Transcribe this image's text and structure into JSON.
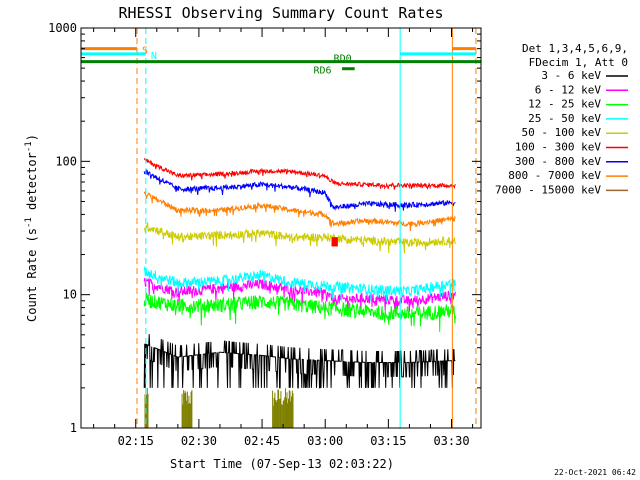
{
  "chart_data": {
    "type": "line",
    "title": "RHESSI Observing Summary Count Rates",
    "xlabel": "Start Time (07-Sep-13 02:03:22)",
    "ylabel_main": "Count Rate (s",
    "ylabel_sup1": "-1",
    "ylabel_mid": " detector",
    "ylabel_sup2": "-1",
    "ylabel_end": ")",
    "yscale": "log",
    "ylim": [
      1,
      1000
    ],
    "xlim_minutes": [
      2.0,
      97.0
    ],
    "x_ticks": [
      {
        "label": "02:15",
        "minutes": 15
      },
      {
        "label": "02:30",
        "minutes": 30
      },
      {
        "label": "02:45",
        "minutes": 45
      },
      {
        "label": "03:00",
        "minutes": 60
      },
      {
        "label": "03:15",
        "minutes": 75
      },
      {
        "label": "03:30",
        "minutes": 90
      }
    ],
    "y_ticks": [
      {
        "label": "1",
        "value": 1
      },
      {
        "label": "10",
        "value": 10
      },
      {
        "label": "100",
        "value": 100
      },
      {
        "label": "1000",
        "value": 1000
      }
    ],
    "legend_header": [
      "Det 1,3,4,5,6,9,",
      "FDecim 1, Att 0"
    ],
    "series": [
      {
        "name": "3 - 6 keV",
        "color": "#000000",
        "points": [
          [
            17,
            4.3
          ],
          [
            25,
            3.4
          ],
          [
            35,
            3.7
          ],
          [
            45,
            3.5
          ],
          [
            52,
            3.3
          ],
          [
            60,
            3.2
          ],
          [
            70,
            3.1
          ],
          [
            80,
            3.1
          ],
          [
            90,
            3.2
          ]
        ],
        "noise": 0.1,
        "dropouts": true
      },
      {
        "name": "6 - 12 keV",
        "color": "#ff00ff",
        "points": [
          [
            17,
            12.5
          ],
          [
            25,
            10.5
          ],
          [
            35,
            11.2
          ],
          [
            45,
            12.0
          ],
          [
            52,
            11.0
          ],
          [
            60,
            10.3
          ],
          [
            62,
            9.2
          ],
          [
            70,
            9.4
          ],
          [
            80,
            9.0
          ],
          [
            90,
            9.9
          ]
        ],
        "noise": 0.05
      },
      {
        "name": "12 - 25 keV",
        "color": "#00ff00",
        "points": [
          [
            17,
            9.2
          ],
          [
            25,
            8.3
          ],
          [
            35,
            8.4
          ],
          [
            45,
            8.9
          ],
          [
            52,
            8.5
          ],
          [
            60,
            8.0
          ],
          [
            70,
            7.5
          ],
          [
            80,
            7.2
          ],
          [
            90,
            7.6
          ]
        ],
        "noise": 0.07
      },
      {
        "name": "25 - 50 keV",
        "color": "#00ffff",
        "points": [
          [
            17,
            15.0
          ],
          [
            25,
            12.3
          ],
          [
            35,
            12.7
          ],
          [
            45,
            14.0
          ],
          [
            52,
            12.4
          ],
          [
            60,
            11.7
          ],
          [
            70,
            11.0
          ],
          [
            80,
            10.6
          ],
          [
            90,
            12.2
          ]
        ],
        "noise": 0.05
      },
      {
        "name": "50 - 100 keV",
        "color": "#cccc00",
        "points": [
          [
            17,
            33.0
          ],
          [
            25,
            27.0
          ],
          [
            35,
            28.0
          ],
          [
            45,
            29.0
          ],
          [
            52,
            27.0
          ],
          [
            60,
            27.0
          ],
          [
            70,
            25.5
          ],
          [
            80,
            24.5
          ],
          [
            90,
            25.5
          ]
        ],
        "noise": 0.04
      },
      {
        "name": "100 - 300 keV",
        "color": "#ff0000",
        "points": [
          [
            17,
            103
          ],
          [
            25,
            78
          ],
          [
            35,
            80
          ],
          [
            45,
            85
          ],
          [
            52,
            84
          ],
          [
            60,
            78
          ],
          [
            61,
            72
          ],
          [
            63,
            68
          ],
          [
            70,
            67
          ],
          [
            80,
            66
          ],
          [
            90,
            66
          ]
        ],
        "noise": 0.02
      },
      {
        "name": "300 - 800 keV",
        "color": "#0000ff",
        "points": [
          [
            17,
            85
          ],
          [
            25,
            62
          ],
          [
            35,
            63
          ],
          [
            45,
            67
          ],
          [
            52,
            64
          ],
          [
            60,
            58
          ],
          [
            62,
            45
          ],
          [
            70,
            48
          ],
          [
            80,
            47
          ],
          [
            90,
            49
          ]
        ],
        "noise": 0.025
      },
      {
        "name": "800 - 7000 keV",
        "color": "#ff7f00",
        "points": [
          [
            17,
            58
          ],
          [
            25,
            43
          ],
          [
            35,
            43
          ],
          [
            45,
            47
          ],
          [
            52,
            43
          ],
          [
            60,
            40
          ],
          [
            62,
            34
          ],
          [
            70,
            36
          ],
          [
            80,
            34
          ],
          [
            90,
            37
          ]
        ],
        "noise": 0.025
      },
      {
        "name": "7000 - 15000 keV",
        "color": "#996633",
        "points": [],
        "noise": 0
      }
    ],
    "attenuator_bands": [
      {
        "label": "S",
        "color": "#ff7f00",
        "y_value": 700,
        "x_ranges": [
          [
            2,
            15.3
          ],
          [
            90.2,
            95.8
          ]
        ]
      },
      {
        "label": "N",
        "color": "#00ffff",
        "y_value": 640,
        "x_ranges": [
          [
            2,
            17.4
          ],
          [
            77.8,
            95.8
          ]
        ]
      }
    ],
    "rate_flags": [
      {
        "label": "RD0",
        "color": "#008000",
        "y_value": 560,
        "x_ranges": [
          [
            2,
            97
          ]
        ]
      },
      {
        "label": "RD6",
        "color": "#008000",
        "y_value": 495,
        "x_ranges": [
          [
            64,
            67
          ]
        ]
      }
    ],
    "vertical_markers": [
      {
        "minutes": 15.3,
        "color": "#ff7f00",
        "style": "dashed"
      },
      {
        "minutes": 17.4,
        "color": "#00ffff",
        "style": "dashed"
      },
      {
        "minutes": 77.8,
        "color": "#00ffff",
        "style": "solid"
      },
      {
        "minutes": 90.2,
        "color": "#ff7f00",
        "style": "solid"
      },
      {
        "minutes": 95.8,
        "color": "#ff7f00",
        "style": "dashed"
      },
      {
        "minutes": 2.0,
        "color": "#00ffff",
        "style": "solid"
      }
    ],
    "olive_spikes": {
      "color": "#808000",
      "groups": [
        [
          17.2,
          18.0
        ],
        [
          26.0,
          28.5
        ],
        [
          47.5,
          52.5
        ]
      ]
    },
    "data_start_minutes": 17.0,
    "data_end_minutes": 91.0,
    "gap_marker": {
      "start": 61.5,
      "end": 63.0
    }
  },
  "footer": {
    "date_stamp": "22-Oct-2021 06:42"
  }
}
